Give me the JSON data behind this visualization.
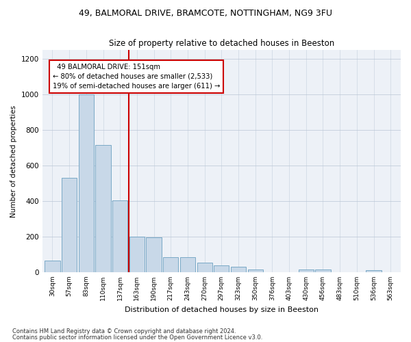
{
  "title_line1": "49, BALMORAL DRIVE, BRAMCOTE, NOTTINGHAM, NG9 3FU",
  "title_line2": "Size of property relative to detached houses in Beeston",
  "xlabel": "Distribution of detached houses by size in Beeston",
  "ylabel": "Number of detached properties",
  "bar_color": "#c8d8e8",
  "bar_edge_color": "#6a9fc0",
  "categories": [
    "30sqm",
    "57sqm",
    "83sqm",
    "110sqm",
    "137sqm",
    "163sqm",
    "190sqm",
    "217sqm",
    "243sqm",
    "270sqm",
    "297sqm",
    "323sqm",
    "350sqm",
    "376sqm",
    "403sqm",
    "430sqm",
    "456sqm",
    "483sqm",
    "510sqm",
    "536sqm",
    "563sqm"
  ],
  "values": [
    65,
    530,
    1000,
    715,
    405,
    200,
    195,
    85,
    85,
    55,
    40,
    30,
    15,
    0,
    0,
    15,
    15,
    0,
    0,
    10,
    0
  ],
  "ylim": [
    0,
    1250
  ],
  "yticks": [
    0,
    200,
    400,
    600,
    800,
    1000,
    1200
  ],
  "red_line_index": 4.5,
  "annotation_text": "  49 BALMORAL DRIVE: 151sqm\n← 80% of detached houses are smaller (2,533)\n19% of semi-detached houses are larger (611) →",
  "annotation_box_color": "#ffffff",
  "annotation_box_edge": "#cc0000",
  "red_line_color": "#cc0000",
  "footnote1": "Contains HM Land Registry data © Crown copyright and database right 2024.",
  "footnote2": "Contains public sector information licensed under the Open Government Licence v3.0.",
  "background_color": "#edf1f7"
}
